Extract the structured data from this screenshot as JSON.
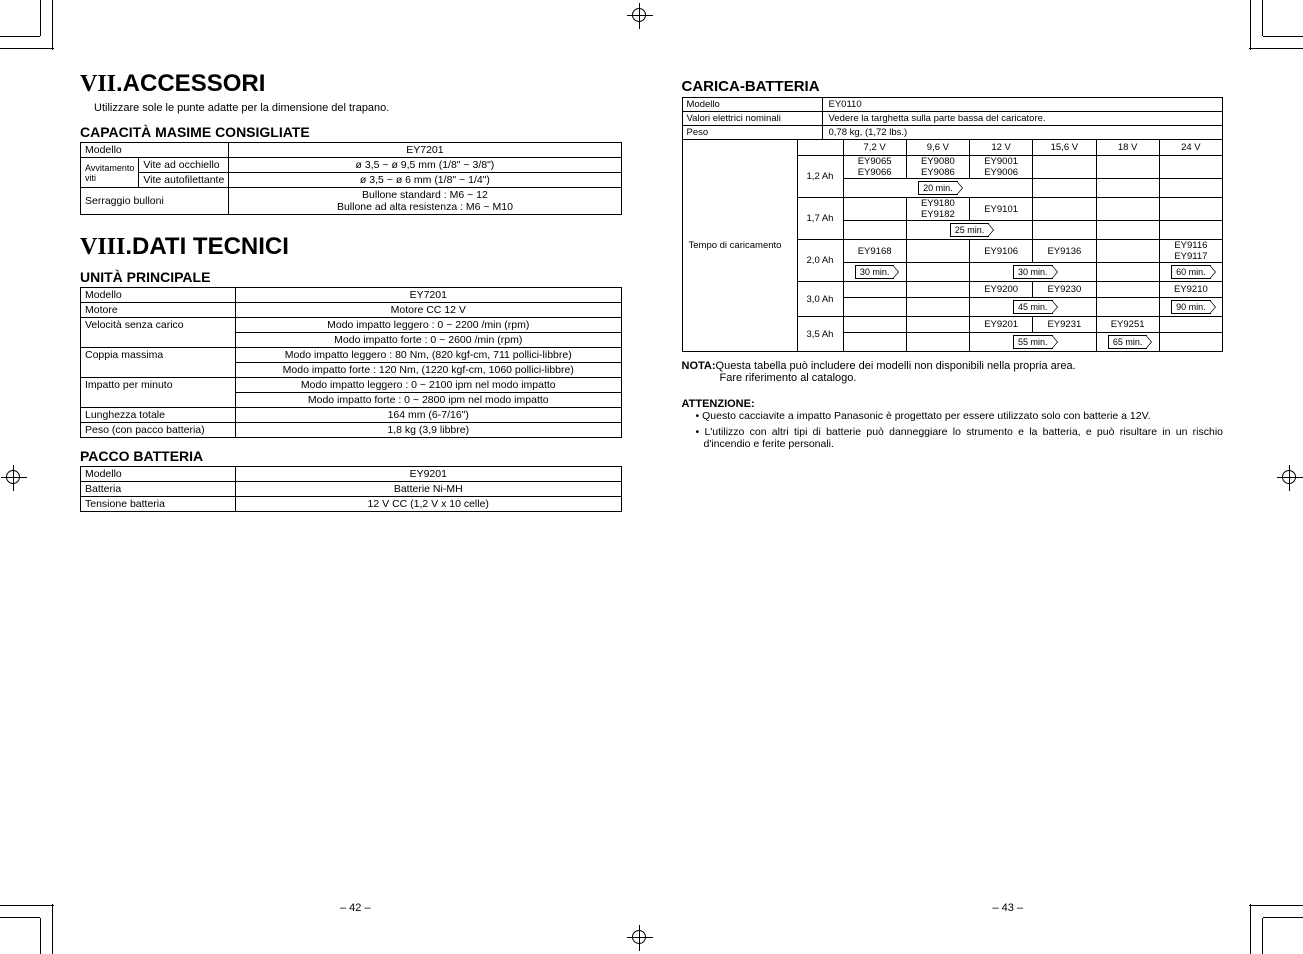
{
  "left": {
    "section7_num": "VII",
    "section7_title": ".ACCESSORI",
    "intro": "Utilizzare sole le punte adatte per la dimensione del trapano.",
    "cap_heading": "CAPACITÀ MASIME CONSIGLIATE",
    "cap": {
      "r1c1": "Modello",
      "r1c2": "EY7201",
      "r2a": "Avvitamento viti",
      "r2b": "Vite ad occhiello",
      "r2c": "ø 3,5 ~ ø 9,5 mm (1/8\" ~ 3/8\")",
      "r3b": "Vite autofilettante",
      "r3c": "ø 3,5 ~ ø 6 mm (1/8\" ~ 1/4\")",
      "r4a": "Serraggio bulloni",
      "r4c1": "Bullone standard : M6 ~ 12",
      "r4c2": "Bullone ad alta resistenza : M6 ~ M10"
    },
    "section8_num": "VIII",
    "section8_title": ".DATI TECNICI",
    "unit_heading": "UNITÀ PRINCIPALE",
    "unit": {
      "r1a": "Modello",
      "r1b": "EY7201",
      "r2a": "Motore",
      "r2b": "Motore CC 12 V",
      "r3a": "Velocità senza carico",
      "r3b": "Modo impatto leggero : 0 ~ 2200 /min (rpm)",
      "r3c": "Modo impatto forte    : 0 ~ 2600 /min (rpm)",
      "r4a": "Coppia massima",
      "r4b": "Modo impatto leggero : 80 Nm, (820 kgf-cm, 711 pollici-libbre)",
      "r4c": "Modo impatto forte    : 120 Nm, (1220 kgf-cm, 1060 pollici-libbre)",
      "r5a": "Impatto per minuto",
      "r5b": "Modo impatto leggero : 0 ~ 2100 ipm nel modo impatto",
      "r5c": "Modo impatto forte    : 0 ~ 2800 ipm nel modo impatto",
      "r6a": "Lunghezza totale",
      "r6b": "164 mm (6-7/16\")",
      "r7a": "Peso (con pacco batteria)",
      "r7b": "1,8 kg (3,9 libbre)"
    },
    "pack_heading": "PACCO BATTERIA",
    "pack": {
      "r1a": "Modello",
      "r1b": "EY9201",
      "r2a": "Batteria",
      "r2b": "Batterie Ni-MH",
      "r3a": "Tensione batteria",
      "r3b": "12 V CC (1,2 V x 10 celle)"
    },
    "page": "– 42 –"
  },
  "right": {
    "charger_heading": "CARICA-BATTERIA",
    "hdr": {
      "r1a": "Modello",
      "r1b": "EY0110",
      "r2a": "Valori elettrici nominali",
      "r2b": "Vedere la targhetta sulla parte bassa del caricatore.",
      "r3a": "Peso",
      "r3b": "0,78 kg, (1,72 lbs.)"
    },
    "time_label": "Tempo di caricamento",
    "volts": [
      "7,2 V",
      "9,6 V",
      "12 V",
      "15,6 V",
      "18 V",
      "24 V"
    ],
    "rows": [
      {
        "ah": "1,2 Ah",
        "cells": [
          "EY9065\nEY9066",
          "EY9080\nEY9086",
          "EY9001\nEY9006",
          "",
          "",
          ""
        ],
        "time": "20 min.",
        "time_span": [
          0,
          2
        ]
      },
      {
        "ah": "1,7 Ah",
        "cells": [
          "",
          "EY9180\nEY9182",
          "EY9101",
          "",
          "",
          ""
        ],
        "time": "25 min.",
        "time_span": [
          1,
          2
        ]
      },
      {
        "ah": "2,0 Ah",
        "cells": [
          "EY9168",
          "",
          "EY9106",
          "EY9136",
          "",
          "EY9116\nEY9117"
        ],
        "time": "30 min.",
        "time_span": [
          0,
          0
        ],
        "time2": "30 min.",
        "time2_span": [
          2,
          3
        ],
        "time3": "60 min.",
        "time3_span": [
          5,
          5
        ]
      },
      {
        "ah": "3,0 Ah",
        "cells": [
          "",
          "",
          "EY9200",
          "EY9230",
          "",
          "EY9210"
        ],
        "time": "45 min.",
        "time_span": [
          2,
          3
        ],
        "time3": "90 min.",
        "time3_span": [
          5,
          5
        ]
      },
      {
        "ah": "3,5 Ah",
        "cells": [
          "",
          "",
          "EY9201",
          "EY9231",
          "EY9251",
          ""
        ],
        "time": "55 min.",
        "time_span": [
          2,
          3
        ],
        "time2": "65 min.",
        "time2_span": [
          4,
          4
        ]
      }
    ],
    "nota_label": "NOTA:",
    "nota_text1": "Questa tabella può includere dei modelli non disponibili nella propria area.",
    "nota_text2": "Fare riferimento al catalogo.",
    "att_label": "ATTENZIONE:",
    "bullet1": "Questo cacciavite a impatto Panasonic è progettato per essere utilizzato solo con batterie a 12V.",
    "bullet2": "L'utilizzo con altri tipi di batterie può danneggiare lo strumento e la batteria, e può risultare in un rischio d'incendio e ferite personali.",
    "page": "– 43 –"
  }
}
